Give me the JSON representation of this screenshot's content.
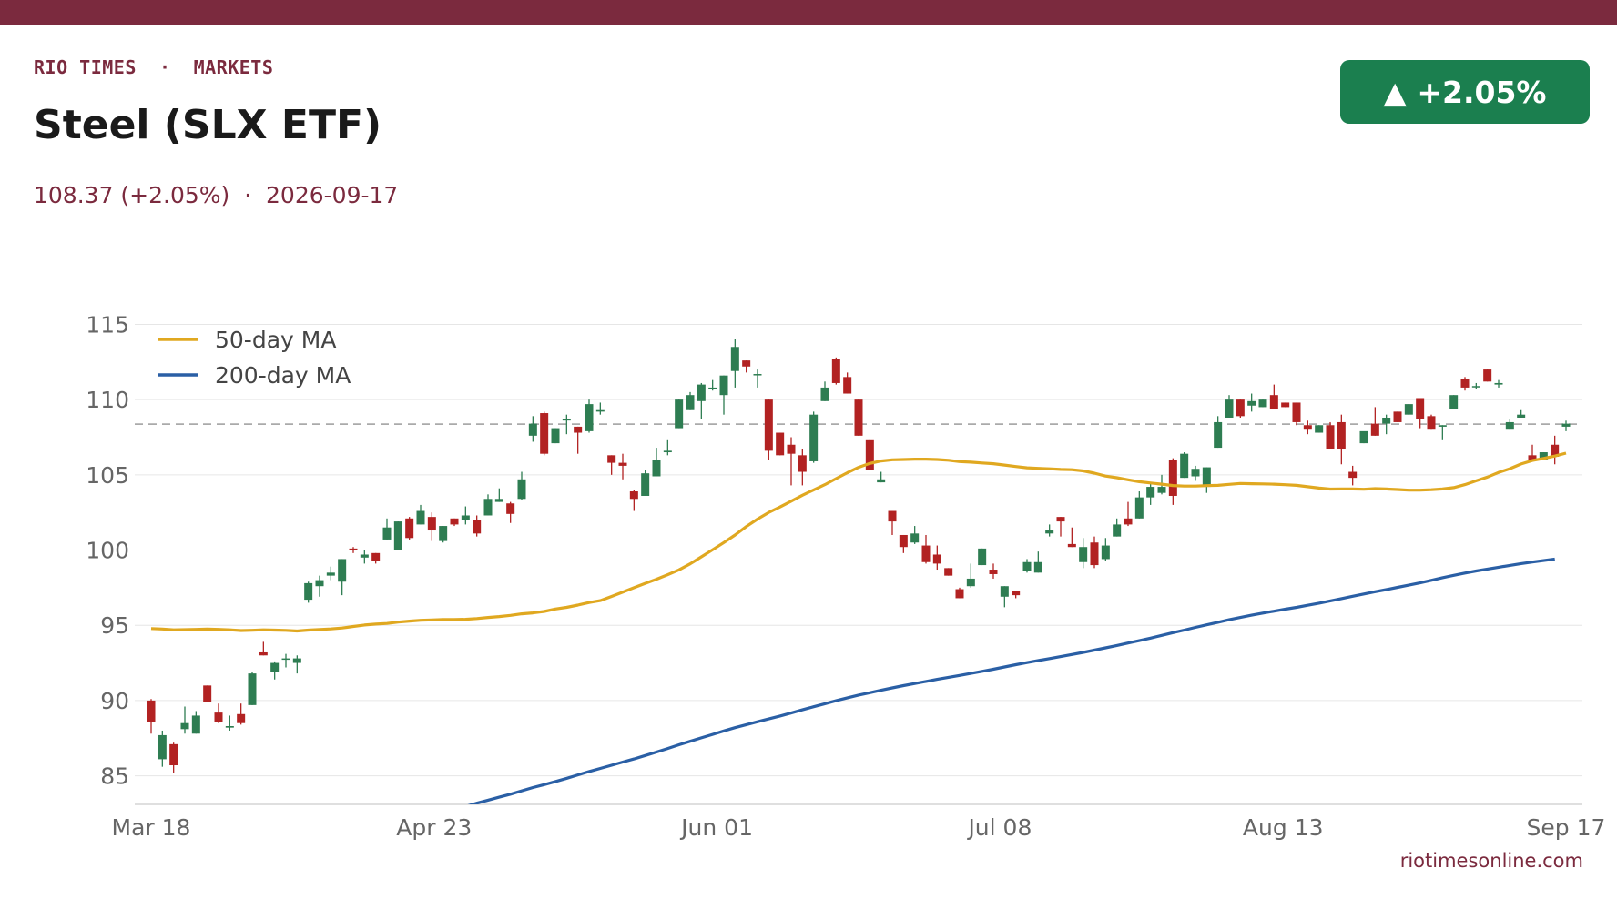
{
  "header": {
    "kicker": "RIO TIMES  ·  MARKETS",
    "title": "Steel (SLX ETF)",
    "subtitle": "108.37 (+2.05%)  ·  2026-09-17",
    "badge": "▲ +2.05%",
    "source": "riotimesonline.com"
  },
  "colors": {
    "brand": "#7b2a3e",
    "up": "#2e7d52",
    "down": "#b22222",
    "ma50": "#e0a820",
    "ma200": "#2a5fa5",
    "badge": "#1b7f4f"
  },
  "chart_data": {
    "type": "candlestick",
    "ylim": [
      83.1,
      116.6
    ],
    "y_ticks": [
      85,
      90,
      95,
      100,
      105,
      110,
      115
    ],
    "x_tick_labels": [
      "Mar 18",
      "Apr 23",
      "Jun 01",
      "Jul 08",
      "Aug 13",
      "Sep 17"
    ],
    "reference_line": 108.37,
    "grid": true,
    "legend": {
      "placement": "top-left",
      "items": [
        {
          "name": "50-day MA",
          "series": "ma50"
        },
        {
          "name": "200-day MA",
          "series": "ma200"
        }
      ]
    },
    "candles": [
      [
        90.0,
        90.1,
        87.8,
        88.6
      ],
      [
        86.1,
        88.0,
        85.6,
        87.7
      ],
      [
        87.1,
        87.2,
        85.2,
        85.7
      ],
      [
        88.1,
        89.6,
        87.8,
        88.5
      ],
      [
        87.8,
        89.3,
        87.8,
        89.0
      ],
      [
        91.0,
        91.0,
        89.9,
        89.9
      ],
      [
        89.2,
        89.8,
        88.5,
        88.6
      ],
      [
        88.2,
        89.0,
        88.0,
        88.3
      ],
      [
        89.1,
        89.8,
        88.4,
        88.5
      ],
      [
        89.7,
        91.9,
        89.7,
        91.8
      ],
      [
        93.2,
        93.9,
        93.0,
        93.0
      ],
      [
        91.9,
        92.6,
        91.4,
        92.5
      ],
      [
        92.8,
        93.1,
        92.2,
        92.8
      ],
      [
        92.5,
        93.0,
        91.8,
        92.8
      ],
      [
        96.7,
        97.9,
        96.5,
        97.8
      ],
      [
        97.6,
        98.3,
        96.9,
        98.0
      ],
      [
        98.3,
        98.9,
        98.0,
        98.5
      ],
      [
        97.9,
        99.4,
        97.0,
        99.4
      ],
      [
        100.1,
        100.2,
        99.8,
        100.0
      ],
      [
        99.5,
        100.0,
        99.1,
        99.7
      ],
      [
        99.8,
        99.8,
        99.1,
        99.3
      ],
      [
        100.7,
        102.1,
        100.7,
        101.5
      ],
      [
        100.0,
        101.9,
        100.0,
        101.9
      ],
      [
        102.1,
        102.2,
        100.7,
        100.8
      ],
      [
        101.7,
        103.0,
        101.7,
        102.6
      ],
      [
        102.2,
        102.5,
        100.6,
        101.3
      ],
      [
        100.6,
        101.6,
        100.5,
        101.6
      ],
      [
        102.1,
        102.1,
        101.6,
        101.7
      ],
      [
        102.0,
        102.9,
        101.7,
        102.3
      ],
      [
        102.0,
        102.3,
        100.9,
        101.1
      ],
      [
        102.3,
        103.7,
        102.3,
        103.4
      ],
      [
        103.2,
        104.1,
        103.2,
        103.4
      ],
      [
        103.1,
        103.2,
        101.8,
        102.4
      ],
      [
        103.4,
        105.2,
        103.3,
        104.7
      ],
      [
        107.6,
        108.9,
        107.2,
        108.4
      ],
      [
        109.1,
        109.2,
        106.3,
        106.4
      ],
      [
        107.1,
        108.1,
        107.1,
        108.1
      ],
      [
        108.7,
        109.0,
        107.7,
        108.7
      ],
      [
        108.2,
        108.2,
        106.4,
        107.8
      ],
      [
        107.9,
        110.0,
        107.8,
        109.7
      ],
      [
        109.2,
        109.8,
        109.0,
        109.3
      ],
      [
        106.3,
        106.3,
        105.0,
        105.8
      ],
      [
        105.8,
        106.4,
        104.7,
        105.6
      ],
      [
        103.9,
        104.0,
        102.6,
        103.4
      ],
      [
        103.6,
        105.3,
        103.6,
        105.1
      ],
      [
        104.9,
        106.8,
        104.9,
        106.0
      ],
      [
        106.5,
        107.3,
        106.3,
        106.6
      ],
      [
        108.1,
        110.0,
        108.1,
        110.0
      ],
      [
        109.3,
        110.5,
        109.3,
        110.3
      ],
      [
        109.9,
        111.1,
        108.7,
        111.0
      ],
      [
        110.8,
        111.3,
        110.6,
        110.8
      ],
      [
        110.3,
        111.6,
        109.0,
        111.6
      ],
      [
        111.9,
        114.0,
        110.8,
        113.5
      ],
      [
        112.6,
        112.6,
        111.8,
        112.2
      ],
      [
        111.7,
        112.0,
        110.8,
        111.7
      ],
      [
        110.0,
        110.0,
        106.0,
        106.6
      ],
      [
        107.8,
        107.8,
        106.3,
        106.3
      ],
      [
        107.0,
        107.5,
        104.3,
        106.4
      ],
      [
        106.3,
        106.7,
        104.3,
        105.2
      ],
      [
        105.9,
        109.2,
        105.8,
        109.0
      ],
      [
        109.9,
        111.2,
        109.9,
        110.8
      ],
      [
        112.7,
        112.8,
        111.0,
        111.1
      ],
      [
        111.5,
        111.8,
        110.4,
        110.4
      ],
      [
        110.0,
        110.0,
        107.6,
        107.6
      ],
      [
        107.3,
        107.3,
        105.3,
        105.3
      ],
      [
        104.5,
        105.2,
        104.5,
        104.7
      ],
      [
        102.6,
        102.6,
        101.0,
        101.9
      ],
      [
        101.0,
        101.0,
        99.8,
        100.2
      ],
      [
        100.5,
        101.6,
        100.4,
        101.1
      ],
      [
        100.3,
        101.0,
        99.1,
        99.2
      ],
      [
        99.7,
        100.3,
        98.7,
        99.1
      ],
      [
        98.8,
        98.8,
        98.3,
        98.3
      ],
      [
        97.4,
        97.5,
        96.8,
        96.8
      ],
      [
        97.6,
        99.1,
        97.5,
        98.1
      ],
      [
        99.0,
        100.1,
        99.0,
        100.1
      ],
      [
        98.7,
        99.1,
        98.1,
        98.4
      ],
      [
        96.9,
        97.6,
        96.2,
        97.6
      ],
      [
        97.3,
        97.3,
        96.8,
        97.0
      ],
      [
        98.6,
        99.4,
        98.5,
        99.2
      ],
      [
        98.5,
        99.9,
        98.5,
        99.2
      ],
      [
        101.1,
        101.7,
        100.9,
        101.3
      ],
      [
        102.2,
        102.2,
        100.9,
        101.9
      ],
      [
        100.4,
        101.5,
        100.2,
        100.2
      ],
      [
        99.2,
        100.8,
        98.8,
        100.2
      ],
      [
        100.5,
        100.9,
        98.8,
        99.0
      ],
      [
        99.4,
        100.8,
        99.3,
        100.3
      ],
      [
        100.9,
        102.1,
        100.9,
        101.7
      ],
      [
        102.1,
        103.2,
        101.6,
        101.7
      ],
      [
        102.1,
        103.9,
        102.1,
        103.5
      ],
      [
        103.5,
        104.4,
        103.0,
        104.2
      ],
      [
        103.8,
        105.0,
        103.7,
        104.2
      ],
      [
        106.0,
        106.1,
        103.0,
        103.6
      ],
      [
        104.8,
        106.5,
        104.8,
        106.4
      ],
      [
        104.9,
        105.6,
        104.6,
        105.4
      ],
      [
        104.2,
        105.5,
        103.8,
        105.5
      ],
      [
        106.8,
        108.9,
        106.8,
        108.5
      ],
      [
        108.8,
        110.3,
        108.8,
        110.0
      ],
      [
        110.0,
        110.0,
        108.8,
        108.9
      ],
      [
        109.6,
        110.4,
        109.2,
        109.9
      ],
      [
        109.5,
        110.0,
        109.5,
        110.0
      ],
      [
        110.3,
        111.0,
        109.4,
        109.4
      ],
      [
        109.8,
        109.8,
        109.5,
        109.5
      ],
      [
        109.8,
        109.8,
        108.3,
        108.5
      ],
      [
        108.3,
        108.6,
        107.7,
        108.0
      ],
      [
        107.8,
        108.3,
        107.8,
        108.3
      ],
      [
        108.3,
        108.5,
        106.7,
        106.7
      ],
      [
        108.5,
        109.0,
        105.7,
        106.7
      ],
      [
        105.2,
        105.6,
        104.3,
        104.8
      ],
      [
        107.1,
        107.7,
        107.1,
        107.9
      ],
      [
        108.4,
        109.5,
        107.6,
        107.6
      ],
      [
        108.4,
        109.0,
        107.7,
        108.8
      ],
      [
        109.2,
        109.2,
        108.5,
        108.5
      ],
      [
        109.0,
        109.7,
        109.0,
        109.7
      ],
      [
        110.1,
        110.1,
        108.1,
        108.7
      ],
      [
        108.9,
        109.0,
        108.0,
        108.0
      ],
      [
        108.2,
        108.3,
        107.3,
        108.3
      ],
      [
        109.4,
        110.3,
        109.4,
        110.3
      ],
      [
        111.4,
        111.5,
        110.6,
        110.8
      ],
      [
        110.9,
        111.1,
        110.7,
        110.9
      ],
      [
        112.0,
        112.0,
        111.2,
        111.2
      ],
      [
        111.0,
        111.3,
        110.8,
        111.1
      ],
      [
        108.0,
        108.7,
        108.0,
        108.5
      ],
      [
        108.8,
        109.3,
        108.8,
        109.0
      ],
      [
        106.3,
        107.0,
        105.9,
        106.0
      ],
      [
        106.0,
        106.5,
        106.0,
        106.5
      ],
      [
        107.0,
        107.6,
        105.7,
        106.2
      ],
      [
        108.2,
        108.6,
        107.9,
        108.4
      ]
    ],
    "ma50": [
      94.78,
      94.75,
      94.7,
      94.71,
      94.73,
      94.75,
      94.73,
      94.7,
      94.65,
      94.67,
      94.7,
      94.68,
      94.66,
      94.62,
      94.68,
      94.72,
      94.76,
      94.82,
      94.92,
      95.02,
      95.08,
      95.12,
      95.21,
      95.28,
      95.33,
      95.36,
      95.38,
      95.38,
      95.4,
      95.45,
      95.52,
      95.58,
      95.66,
      95.76,
      95.82,
      95.92,
      96.08,
      96.19,
      96.34,
      96.51,
      96.64,
      96.92,
      97.21,
      97.5,
      97.79,
      98.06,
      98.36,
      98.68,
      99.08,
      99.55,
      100.02,
      100.5,
      101.0,
      101.56,
      102.06,
      102.5,
      102.86,
      103.25,
      103.64,
      104.0,
      104.35,
      104.75,
      105.14,
      105.5,
      105.76,
      105.92,
      106.0,
      106.02,
      106.04,
      106.04,
      106.02,
      105.97,
      105.88,
      105.84,
      105.79,
      105.74,
      105.65,
      105.55,
      105.47,
      105.43,
      105.4,
      105.36,
      105.34,
      105.26,
      105.11,
      104.92,
      104.81,
      104.67,
      104.54,
      104.46,
      104.38,
      104.29,
      104.25,
      104.25,
      104.28,
      104.3,
      104.37,
      104.43,
      104.41,
      104.4,
      104.38,
      104.34,
      104.3,
      104.21,
      104.12,
      104.05,
      104.06,
      104.06,
      104.04,
      104.08,
      104.06,
      104.02,
      103.98,
      103.98,
      104.01,
      104.06,
      104.15,
      104.35,
      104.6,
      104.85,
      105.16,
      105.41,
      105.72,
      105.95,
      106.09,
      106.25,
      106.44
    ],
    "ma200": [
      null,
      null,
      null,
      null,
      null,
      null,
      null,
      null,
      null,
      null,
      null,
      null,
      null,
      null,
      null,
      null,
      null,
      null,
      null,
      null,
      null,
      null,
      null,
      null,
      null,
      null,
      null,
      null,
      82.96,
      83.18,
      83.38,
      83.58,
      83.78,
      84.0,
      84.22,
      84.41,
      84.62,
      84.83,
      85.06,
      85.28,
      85.49,
      85.7,
      85.91,
      86.12,
      86.35,
      86.58,
      86.81,
      87.06,
      87.29,
      87.52,
      87.75,
      87.98,
      88.2,
      88.4,
      88.59,
      88.78,
      88.97,
      89.17,
      89.38,
      89.59,
      89.79,
      89.99,
      90.18,
      90.36,
      90.52,
      90.68,
      90.84,
      90.99,
      91.13,
      91.27,
      91.41,
      91.54,
      91.67,
      91.8,
      91.94,
      92.08,
      92.23,
      92.38,
      92.52,
      92.66,
      92.79,
      92.92,
      93.06,
      93.2,
      93.35,
      93.5,
      93.66,
      93.82,
      93.98,
      94.15,
      94.33,
      94.51,
      94.68,
      94.86,
      95.03,
      95.2,
      95.37,
      95.52,
      95.67,
      95.81,
      95.94,
      96.07,
      96.19,
      96.33,
      96.47,
      96.62,
      96.77,
      96.93,
      97.08,
      97.23,
      97.37,
      97.52,
      97.67,
      97.82,
      97.99,
      98.16,
      98.32,
      98.47,
      98.61,
      98.74,
      98.86,
      98.98,
      99.1,
      99.2,
      99.3,
      99.4
    ]
  }
}
